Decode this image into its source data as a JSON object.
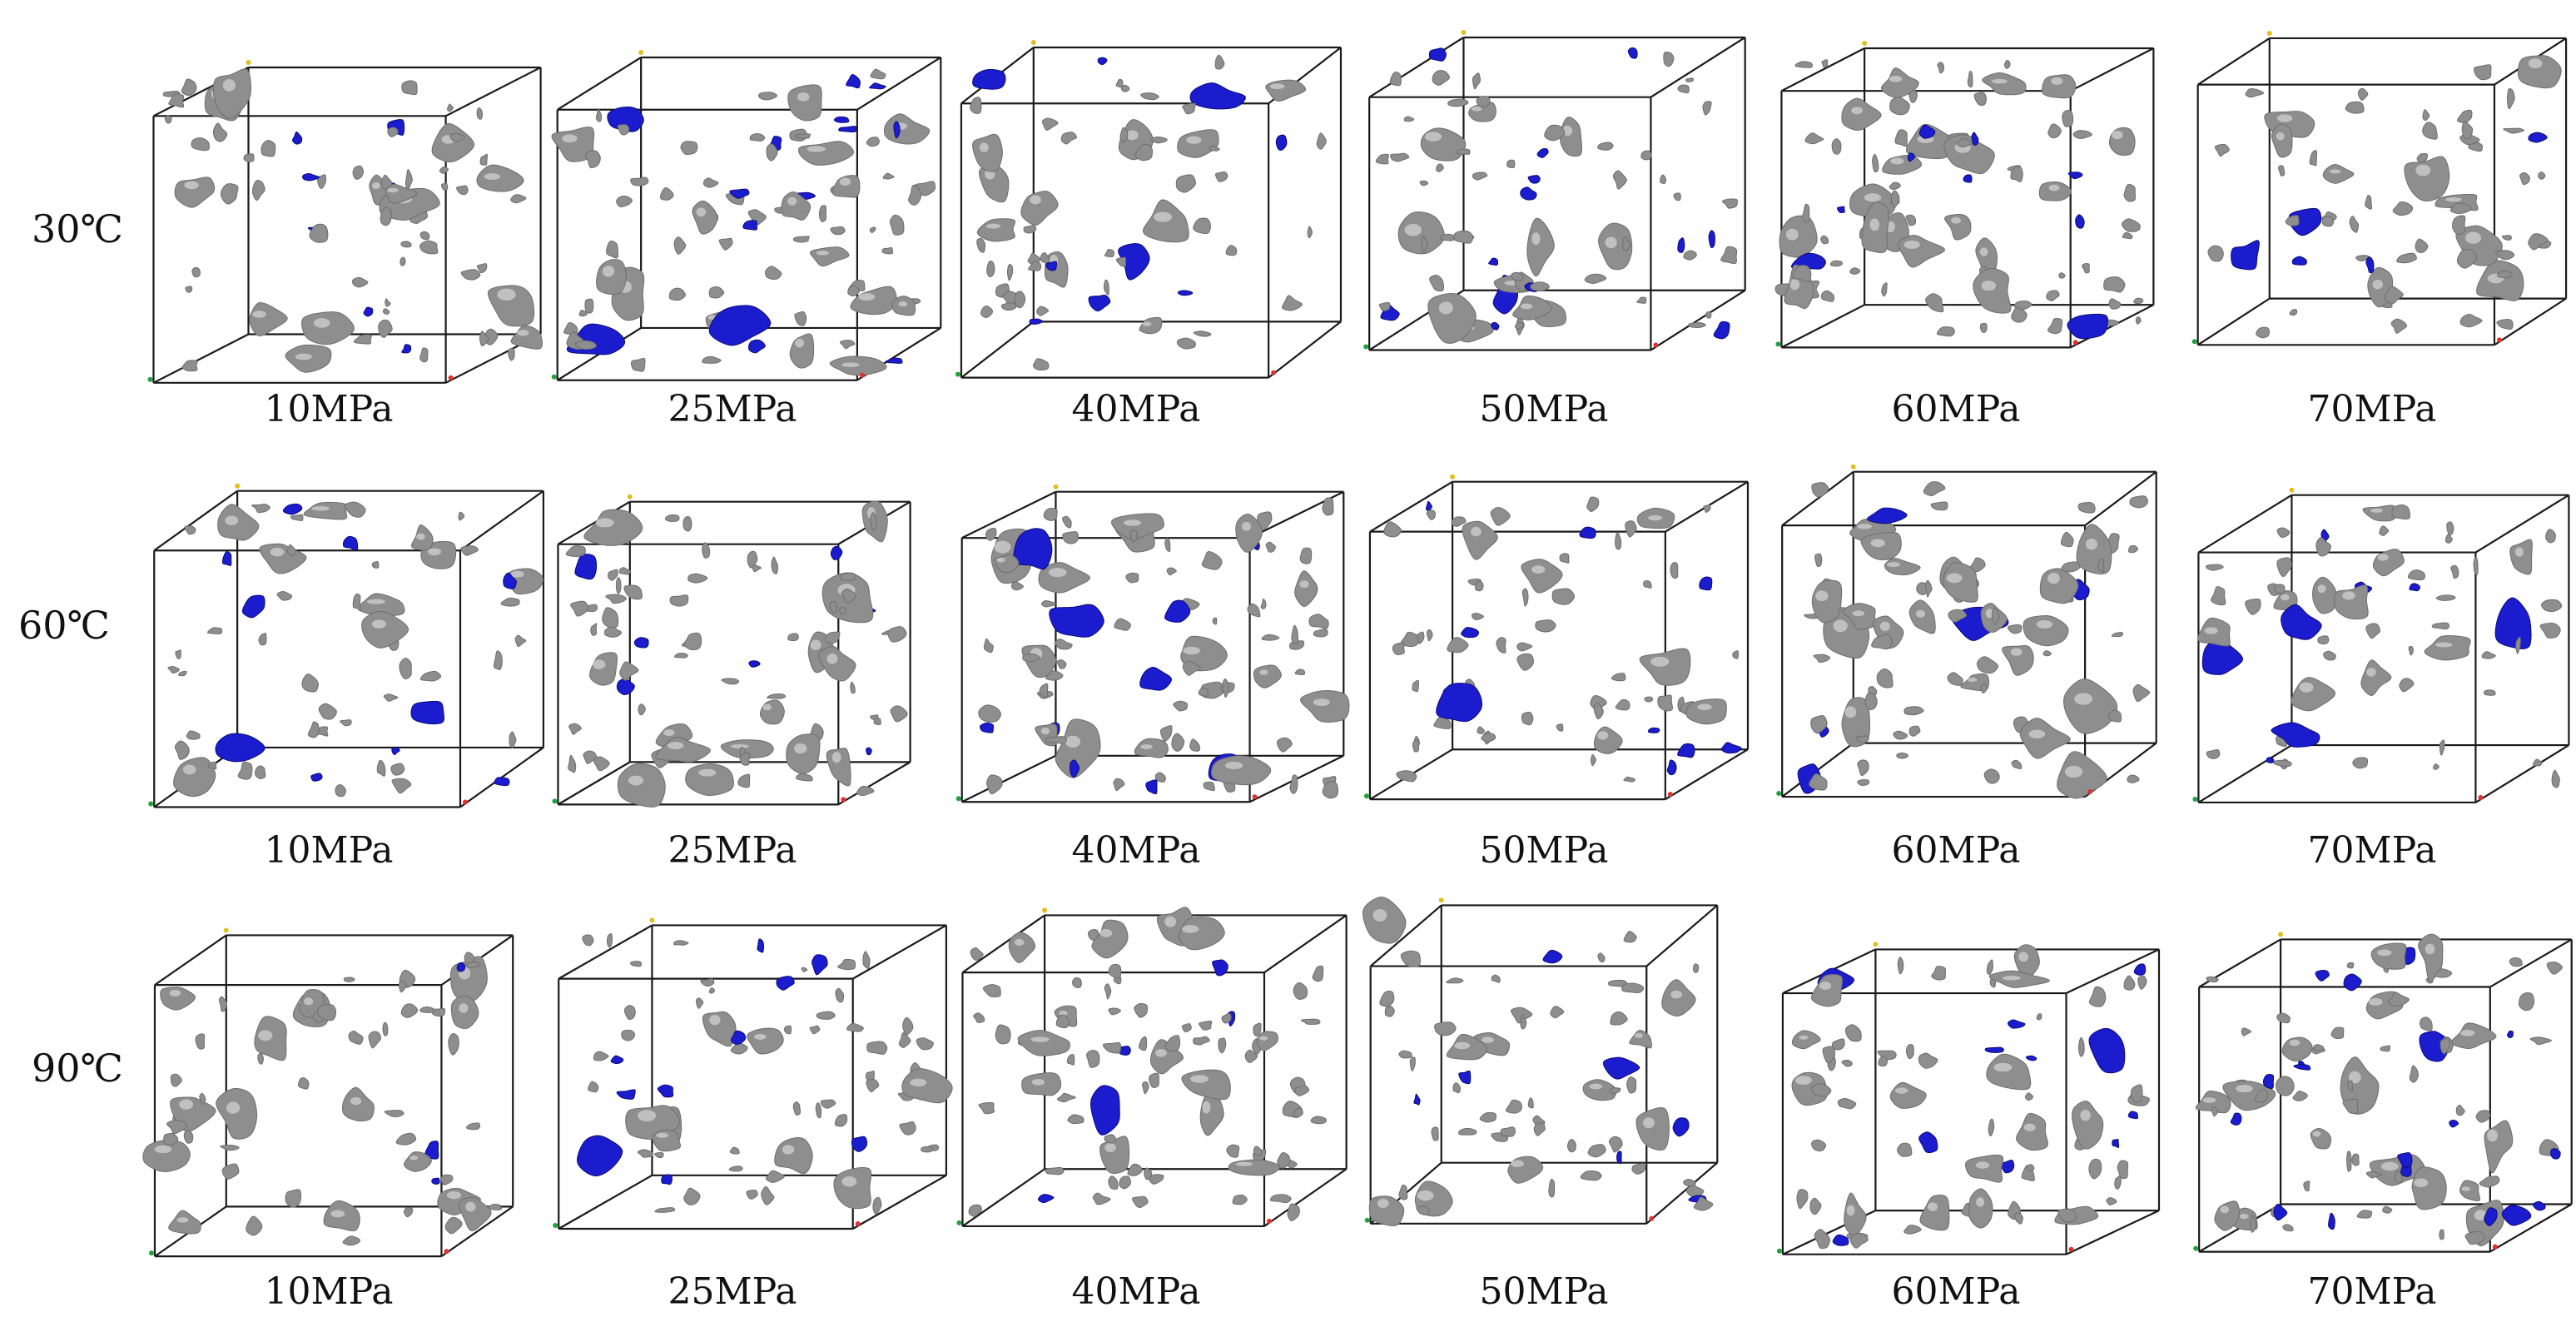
{
  "figure": {
    "rows": [
      {
        "temperature": "30℃",
        "panels": [
          "10MPa",
          "25MPa",
          "40MPa",
          "50MPa",
          "60MPa",
          "70MPa"
        ]
      },
      {
        "temperature": "60℃",
        "panels": [
          "10MPa",
          "25MPa",
          "40MPa",
          "50MPa",
          "60MPa",
          "70MPa"
        ]
      },
      {
        "temperature": "90℃",
        "panels": [
          "10MPa",
          "25MPa",
          "40MPa",
          "50MPa",
          "60MPa",
          "70MPa"
        ]
      }
    ],
    "colors": {
      "cube_edge": "#1a1a1a",
      "pore_gray": "#8e8e8e",
      "pore_gray_highlight": "#c9c9c9",
      "pore_blue": "#1c1ccf",
      "axis_x": "#e03030",
      "axis_y": "#e0c020",
      "axis_z": "#20a040",
      "background": "#ffffff"
    },
    "glyphs": {
      "pore_shape": "irregular-blob"
    }
  }
}
